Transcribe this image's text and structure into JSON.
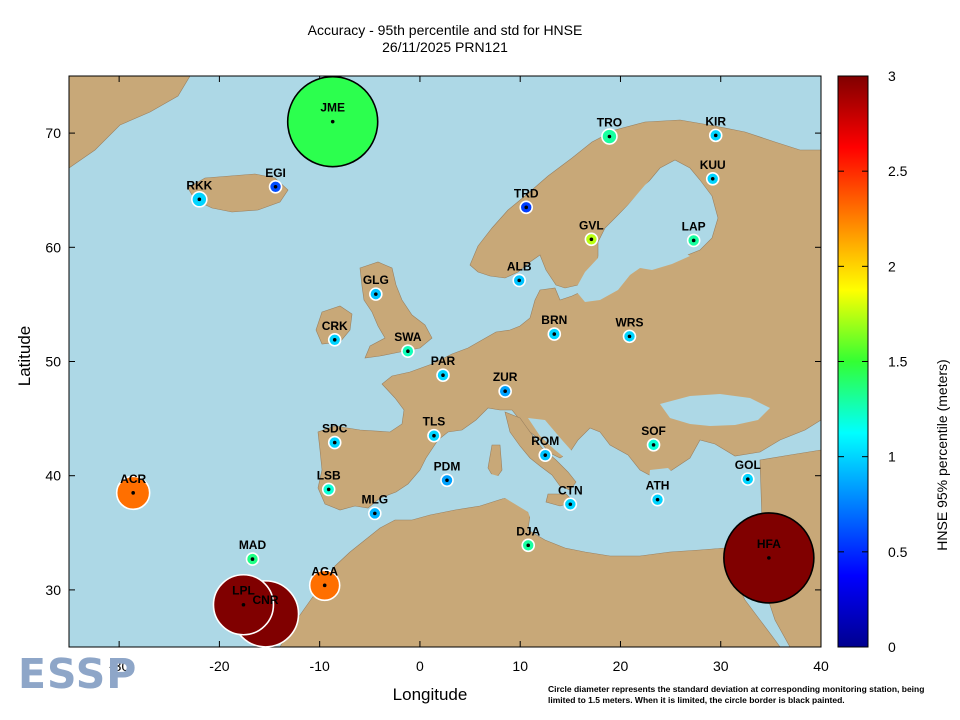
{
  "title_line1": "Accuracy - 95th percentile and std for HNSE",
  "title_line2": "26/11/2025 PRN121",
  "xlabel": "Longitude",
  "ylabel": "Latitude",
  "colorbar_label": "HNSE 95% percentile (meters)",
  "note": "Circle diameter represents the standard deviation at corresponding monitoring station, being limited to 1.5 meters. When it is limited, the circle border is black painted.",
  "logo": "ESSP",
  "colors": {
    "sea": "#add8e6",
    "land": "#c8a878",
    "marker_border": "#ffffff"
  },
  "chart_data": {
    "type": "scatter",
    "xlim": [
      -35,
      40
    ],
    "ylim": [
      25,
      75
    ],
    "x_ticks": [
      -30,
      -20,
      -10,
      0,
      10,
      20,
      30,
      40
    ],
    "y_ticks": [
      30,
      40,
      50,
      60,
      70
    ],
    "colorbar": {
      "min": 0,
      "max": 3,
      "ticks": [
        0,
        0.5,
        1,
        1.5,
        2,
        2.5,
        3
      ]
    },
    "stations": [
      {
        "name": "JME",
        "lon": -8.7,
        "lat": 71.0,
        "value": 1.45,
        "std": 1.5,
        "limited": true
      },
      {
        "name": "TRO",
        "lon": 18.9,
        "lat": 69.7,
        "value": 1.3,
        "std": 0.25,
        "limited": false
      },
      {
        "name": "KIR",
        "lon": 29.5,
        "lat": 69.8,
        "value": 1.0,
        "std": 0.15,
        "limited": false
      },
      {
        "name": "EGI",
        "lon": -14.4,
        "lat": 65.3,
        "value": 0.6,
        "std": 0.1,
        "limited": false
      },
      {
        "name": "RKK",
        "lon": -22.0,
        "lat": 64.2,
        "value": 1.0,
        "std": 0.25,
        "limited": false
      },
      {
        "name": "KUU",
        "lon": 29.2,
        "lat": 66.0,
        "value": 1.0,
        "std": 0.1,
        "limited": false
      },
      {
        "name": "TRD",
        "lon": 10.6,
        "lat": 63.5,
        "value": 0.55,
        "std": 0.1,
        "limited": false
      },
      {
        "name": "GVL",
        "lon": 17.1,
        "lat": 60.7,
        "value": 1.75,
        "std": 0.2,
        "limited": false
      },
      {
        "name": "LAP",
        "lon": 27.3,
        "lat": 60.6,
        "value": 1.3,
        "std": 0.2,
        "limited": false
      },
      {
        "name": "ALB",
        "lon": 9.9,
        "lat": 57.1,
        "value": 0.95,
        "std": 0.08,
        "limited": false
      },
      {
        "name": "GLG",
        "lon": -4.4,
        "lat": 55.9,
        "value": 0.95,
        "std": 0.12,
        "limited": false
      },
      {
        "name": "BRN",
        "lon": 13.4,
        "lat": 52.4,
        "value": 1.0,
        "std": 0.12,
        "limited": false
      },
      {
        "name": "WRS",
        "lon": 20.9,
        "lat": 52.2,
        "value": 1.0,
        "std": 0.12,
        "limited": false
      },
      {
        "name": "CRK",
        "lon": -8.5,
        "lat": 51.9,
        "value": 1.0,
        "std": 0.12,
        "limited": false
      },
      {
        "name": "SWA",
        "lon": -1.2,
        "lat": 50.9,
        "value": 1.25,
        "std": 0.15,
        "limited": false
      },
      {
        "name": "PAR",
        "lon": 2.3,
        "lat": 48.8,
        "value": 1.0,
        "std": 0.14,
        "limited": false
      },
      {
        "name": "ZUR",
        "lon": 8.5,
        "lat": 47.4,
        "value": 0.85,
        "std": 0.1,
        "limited": false
      },
      {
        "name": "TLS",
        "lon": 1.4,
        "lat": 43.5,
        "value": 1.0,
        "std": 0.12,
        "limited": false
      },
      {
        "name": "SDC",
        "lon": -8.5,
        "lat": 42.9,
        "value": 1.0,
        "std": 0.12,
        "limited": false
      },
      {
        "name": "SOF",
        "lon": 23.3,
        "lat": 42.7,
        "value": 1.2,
        "std": 0.15,
        "limited": false
      },
      {
        "name": "ROM",
        "lon": 12.5,
        "lat": 41.8,
        "value": 0.95,
        "std": 0.1,
        "limited": false
      },
      {
        "name": "GOL",
        "lon": 32.7,
        "lat": 39.7,
        "value": 1.0,
        "std": 0.12,
        "limited": false
      },
      {
        "name": "PDM",
        "lon": 2.7,
        "lat": 39.6,
        "value": 0.85,
        "std": 0.1,
        "limited": false
      },
      {
        "name": "ACR",
        "lon": -28.6,
        "lat": 38.5,
        "value": 2.3,
        "std": 0.55,
        "limited": false
      },
      {
        "name": "LSB",
        "lon": -9.1,
        "lat": 38.8,
        "value": 1.2,
        "std": 0.15,
        "limited": false
      },
      {
        "name": "ATH",
        "lon": 23.7,
        "lat": 37.9,
        "value": 1.0,
        "std": 0.1,
        "limited": false
      },
      {
        "name": "CTN",
        "lon": 15.0,
        "lat": 37.5,
        "value": 1.0,
        "std": 0.12,
        "limited": false
      },
      {
        "name": "MLG",
        "lon": -4.5,
        "lat": 36.7,
        "value": 0.9,
        "std": 0.1,
        "limited": false
      },
      {
        "name": "DJA",
        "lon": 10.8,
        "lat": 33.9,
        "value": 1.3,
        "std": 0.15,
        "limited": false
      },
      {
        "name": "HFA",
        "lon": 34.8,
        "lat": 32.8,
        "value": 3.0,
        "std": 1.5,
        "limited": true
      },
      {
        "name": "MAD",
        "lon": -16.7,
        "lat": 32.7,
        "value": 1.35,
        "std": 0.18,
        "limited": false
      },
      {
        "name": "AGA",
        "lon": -9.5,
        "lat": 30.4,
        "value": 2.3,
        "std": 0.5,
        "limited": false
      },
      {
        "name": "LPL",
        "lon": -17.6,
        "lat": 28.7,
        "value": 3.0,
        "std": 1.0,
        "limited": false
      },
      {
        "name": "CNR",
        "lon": -15.4,
        "lat": 27.9,
        "value": 3.0,
        "std": 1.1,
        "limited": false
      }
    ]
  }
}
